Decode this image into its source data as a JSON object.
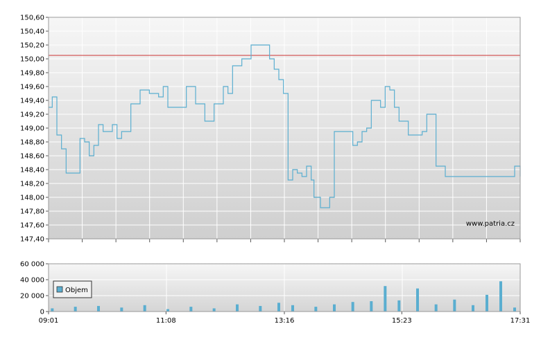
{
  "chart_data": [
    {
      "type": "line",
      "ylim": [
        147.4,
        150.6
      ],
      "yticks": [
        "150,60",
        "150,40",
        "150,20",
        "150,00",
        "149,80",
        "149,60",
        "149,40",
        "149,20",
        "149,00",
        "148,80",
        "148,60",
        "148,40",
        "148,20",
        "148,00",
        "147,80",
        "147,60",
        "147,40"
      ],
      "reference_line": {
        "value": 150.05,
        "color": "#cc3333"
      },
      "watermark": "www.patria.cz",
      "grid": true,
      "line_color": "#5aaed0",
      "x_range": [
        "09:01",
        "17:31"
      ],
      "series": [
        {
          "x": [
            "09:01",
            "09:05",
            "09:10",
            "09:15",
            "09:20",
            "09:25",
            "09:35",
            "09:40",
            "09:45",
            "09:50",
            "09:55",
            "10:00",
            "10:05",
            "10:10",
            "10:15",
            "10:20",
            "10:30",
            "10:40",
            "10:50",
            "11:00",
            "11:05",
            "11:10",
            "11:20",
            "11:30",
            "11:40",
            "11:50",
            "12:00",
            "12:10",
            "12:15",
            "12:20",
            "12:30",
            "12:40",
            "12:50",
            "13:00",
            "13:05",
            "13:10",
            "13:15",
            "13:20",
            "13:25",
            "13:30",
            "13:35",
            "13:40",
            "13:45",
            "13:48",
            "13:55",
            "14:05",
            "14:10",
            "14:20",
            "14:30",
            "14:35",
            "14:40",
            "14:45",
            "14:50",
            "15:00",
            "15:05",
            "15:10",
            "15:15",
            "15:20",
            "15:30",
            "15:40",
            "15:45",
            "15:50",
            "16:00",
            "16:05",
            "16:10",
            "16:15",
            "16:20",
            "16:30",
            "16:40",
            "16:50",
            "17:00",
            "17:10",
            "17:20",
            "17:25",
            "17:31"
          ],
          "values": [
            149.3,
            149.45,
            148.9,
            148.7,
            148.35,
            148.35,
            148.85,
            148.8,
            148.6,
            148.75,
            149.05,
            148.95,
            148.95,
            149.05,
            148.85,
            148.95,
            149.35,
            149.55,
            149.5,
            149.45,
            149.6,
            149.3,
            149.3,
            149.6,
            149.35,
            149.1,
            149.35,
            149.6,
            149.5,
            149.9,
            150.0,
            150.2,
            150.2,
            150.0,
            149.85,
            149.7,
            149.5,
            148.25,
            148.4,
            148.35,
            148.3,
            148.45,
            148.25,
            148.0,
            147.85,
            148.0,
            148.95,
            148.95,
            148.75,
            148.8,
            148.95,
            149.0,
            149.4,
            149.3,
            149.6,
            149.55,
            149.3,
            149.1,
            148.9,
            148.9,
            148.95,
            149.2,
            148.45,
            148.45,
            148.3,
            148.3,
            148.3,
            148.3,
            148.3,
            148.3,
            148.3,
            148.3,
            148.3,
            148.45,
            148.3
          ]
        }
      ]
    },
    {
      "type": "bar",
      "ylim": [
        0,
        60000
      ],
      "yticks": [
        "60 000",
        "40 000",
        "20 000",
        "0"
      ],
      "xticks": [
        "09:01",
        "11:08",
        "13:16",
        "15:23",
        "17:31"
      ],
      "grid": true,
      "legend": {
        "label": "Objem",
        "placement": "left"
      },
      "bar_color": "#5aaed0",
      "series": [
        {
          "name": "Objem",
          "x": [
            "09:05",
            "09:30",
            "09:55",
            "10:20",
            "10:45",
            "11:10",
            "11:35",
            "12:00",
            "12:25",
            "12:50",
            "13:10",
            "13:25",
            "13:50",
            "14:10",
            "14:30",
            "14:50",
            "15:05",
            "15:20",
            "15:40",
            "16:00",
            "16:20",
            "16:40",
            "16:55",
            "17:10",
            "17:25"
          ],
          "values": [
            4000,
            6000,
            7000,
            5000,
            8000,
            3000,
            6000,
            4000,
            9000,
            7000,
            11000,
            8000,
            6000,
            9000,
            12000,
            13000,
            32000,
            14000,
            29000,
            9000,
            15000,
            8000,
            21000,
            38000,
            5000
          ]
        }
      ]
    }
  ]
}
